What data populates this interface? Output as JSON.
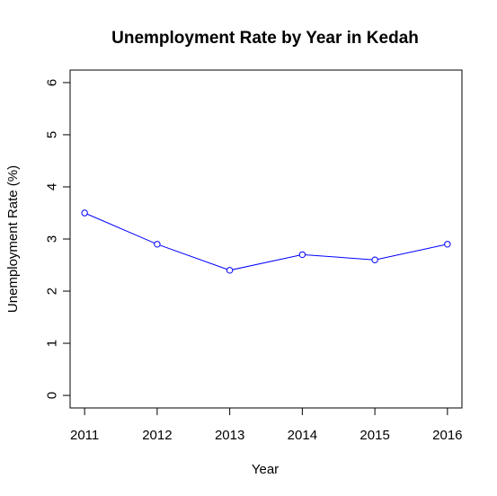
{
  "chart_data": {
    "type": "line",
    "title": "Unemployment Rate by Year in Kedah",
    "xlabel": "Year",
    "ylabel": "Unemployment Rate (%)",
    "x": [
      2011,
      2012,
      2013,
      2014,
      2015,
      2016
    ],
    "x_tick_labels": [
      "2011",
      "2012",
      "2013",
      "2014",
      "2015",
      "2016"
    ],
    "y_ticks": [
      0,
      1,
      2,
      3,
      4,
      5,
      6
    ],
    "y_tick_labels": [
      "0",
      "1",
      "2",
      "3",
      "4",
      "5",
      "6"
    ],
    "xlim": [
      2010.8,
      2016.2
    ],
    "ylim": [
      -0.24,
      6.24
    ],
    "series": [
      {
        "values": [
          3.5,
          2.9,
          2.4,
          2.7,
          2.6,
          2.9
        ],
        "color": "#0000ff",
        "marker": "open-circle"
      }
    ],
    "grid": false,
    "legend": "none"
  }
}
